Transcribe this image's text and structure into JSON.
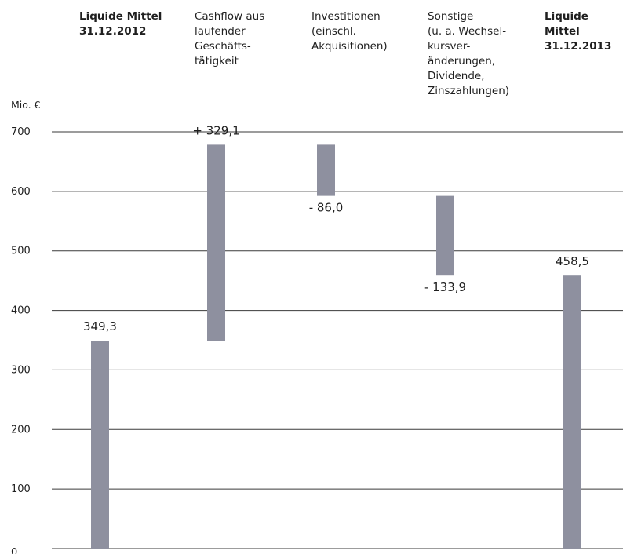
{
  "chart_data": {
    "type": "bar",
    "subtype": "waterfall",
    "unit_label": "Mio. €",
    "ylim": [
      0,
      700
    ],
    "yticks": [
      "700",
      "600",
      "500",
      "400",
      "300",
      "200",
      "100",
      "0"
    ],
    "grid": true,
    "color": "#8e909f",
    "categories": [
      {
        "label": "Liquide Mittel\n31.12.2012",
        "bold": true
      },
      {
        "label": "Cashflow aus\nlaufender\nGeschäfts-\ntätigkeit",
        "bold": false
      },
      {
        "label": "Investitionen\n(einschl.\nAkquisitionen)",
        "bold": false
      },
      {
        "label": "Sonstige\n(u. a. Wechsel-\nkursver-\nänderungen,\nDividende,\nZinszahlungen)",
        "bold": false
      },
      {
        "label": "Liquide Mittel\n31.12.2013",
        "bold": true
      }
    ],
    "bars": [
      {
        "start": 0,
        "end": 349.3,
        "value_label": "349,3"
      },
      {
        "start": 349.3,
        "end": 678.4,
        "value_label": "+ 329,1"
      },
      {
        "start": 678.4,
        "end": 592.4,
        "value_label": "- 86,0"
      },
      {
        "start": 592.4,
        "end": 458.5,
        "value_label": "- 133,9"
      },
      {
        "start": 0,
        "end": 458.5,
        "value_label": "458,5"
      }
    ]
  }
}
